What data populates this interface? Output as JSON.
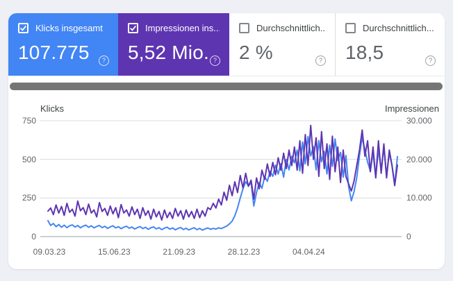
{
  "page": {
    "background": "#eef0f6",
    "help_glyph": "?"
  },
  "cards": [
    {
      "label": "Klicks insgesamt",
      "value": "107.775",
      "selected": true,
      "color": "#4285F4"
    },
    {
      "label": "Impressionen ins...",
      "value": "5,52 Mio.",
      "selected": true,
      "color": "#5E35B1"
    },
    {
      "label": "Durchschnittlich...",
      "value": "2 %",
      "selected": false,
      "color": "#ffffff"
    },
    {
      "label": "Durchschnittlich...",
      "value": "18,5",
      "selected": false,
      "color": "#ffffff"
    }
  ],
  "chart_data": {
    "type": "line",
    "title": "",
    "grid": true,
    "x_tick_labels": [
      "09.03.23",
      "15.06.23",
      "21.09.23",
      "28.12.23",
      "04.04.24"
    ],
    "left_axis": {
      "label": "Klicks",
      "range": [
        0,
        750
      ],
      "ticks": [
        0,
        250,
        500,
        750
      ],
      "tick_labels": [
        "750",
        "500",
        "250",
        "0"
      ]
    },
    "right_axis": {
      "label": "Impressionen",
      "range": [
        0,
        30000
      ],
      "ticks": [
        0,
        10000,
        20000,
        30000
      ],
      "tick_labels": [
        "30.000",
        "20.000",
        "10.000",
        "0"
      ]
    },
    "series": [
      {
        "name": "Klicks",
        "axis": "left",
        "color": "#4285F4",
        "values": [
          103,
          72,
          85,
          64,
          78,
          60,
          74,
          58,
          70,
          76,
          62,
          72,
          57,
          68,
          74,
          60,
          70,
          56,
          66,
          72,
          58,
          67,
          53,
          63,
          70,
          56,
          64,
          51,
          61,
          67,
          54,
          62,
          49,
          58,
          65,
          52,
          60,
          47,
          57,
          63,
          50,
          58,
          45,
          55,
          61,
          48,
          56,
          44,
          53,
          59,
          46,
          54,
          43,
          51,
          57,
          45,
          53,
          42,
          50,
          56,
          47,
          53,
          49,
          57,
          52,
          60,
          68,
          82,
          100,
          135,
          185,
          250,
          310,
          355,
          330,
          348,
          198,
          285,
          350,
          312,
          388,
          358,
          422,
          390,
          462,
          405,
          472,
          385,
          500,
          432,
          520,
          478,
          560,
          425,
          612,
          470,
          648,
          522,
          582,
          432,
          622,
          485,
          552,
          405,
          592,
          455,
          632,
          492,
          545,
          385,
          525,
          322,
          232,
          292,
          382,
          525,
          642,
          562,
          482,
          425,
          542,
          385,
          562,
          432,
          575,
          392,
          542,
          462,
          335,
          518
        ]
      },
      {
        "name": "Impressionen",
        "axis": "right",
        "color": "#5E35B1",
        "values": [
          6600,
          7400,
          5700,
          8200,
          6100,
          7800,
          5500,
          8600,
          6300,
          7100,
          5300,
          9200,
          6700,
          7500,
          5700,
          8400,
          6100,
          6900,
          5100,
          8800,
          6500,
          7300,
          5500,
          7900,
          5900,
          7500,
          4900,
          8300,
          6100,
          6900,
          5300,
          7700,
          5700,
          7100,
          4700,
          7500,
          5500,
          6700,
          4500,
          7100,
          5100,
          6500,
          4300,
          6900,
          4900,
          6300,
          4700,
          7300,
          5300,
          6700,
          4500,
          6900,
          5100,
          6500,
          4700,
          7100,
          4900,
          6700,
          5300,
          7500,
          7000,
          8600,
          7400,
          9700,
          8200,
          11500,
          9400,
          13300,
          10600,
          14200,
          11400,
          15800,
          12600,
          16400,
          13000,
          14600,
          9700,
          15200,
          12400,
          17200,
          14800,
          18800,
          15600,
          19200,
          16000,
          20400,
          17200,
          21600,
          17600,
          22400,
          18400,
          23200,
          17200,
          24800,
          16400,
          26400,
          18400,
          28800,
          20000,
          25600,
          15600,
          27200,
          17600,
          24000,
          14800,
          26000,
          16800,
          23200,
          14000,
          22400,
          15600,
          13600,
          11800,
          14400,
          18400,
          22400,
          27600,
          20800,
          24800,
          16800,
          23200,
          15200,
          24800,
          16400,
          24000,
          15200,
          22400,
          18400,
          13200,
          18500
        ]
      }
    ]
  }
}
